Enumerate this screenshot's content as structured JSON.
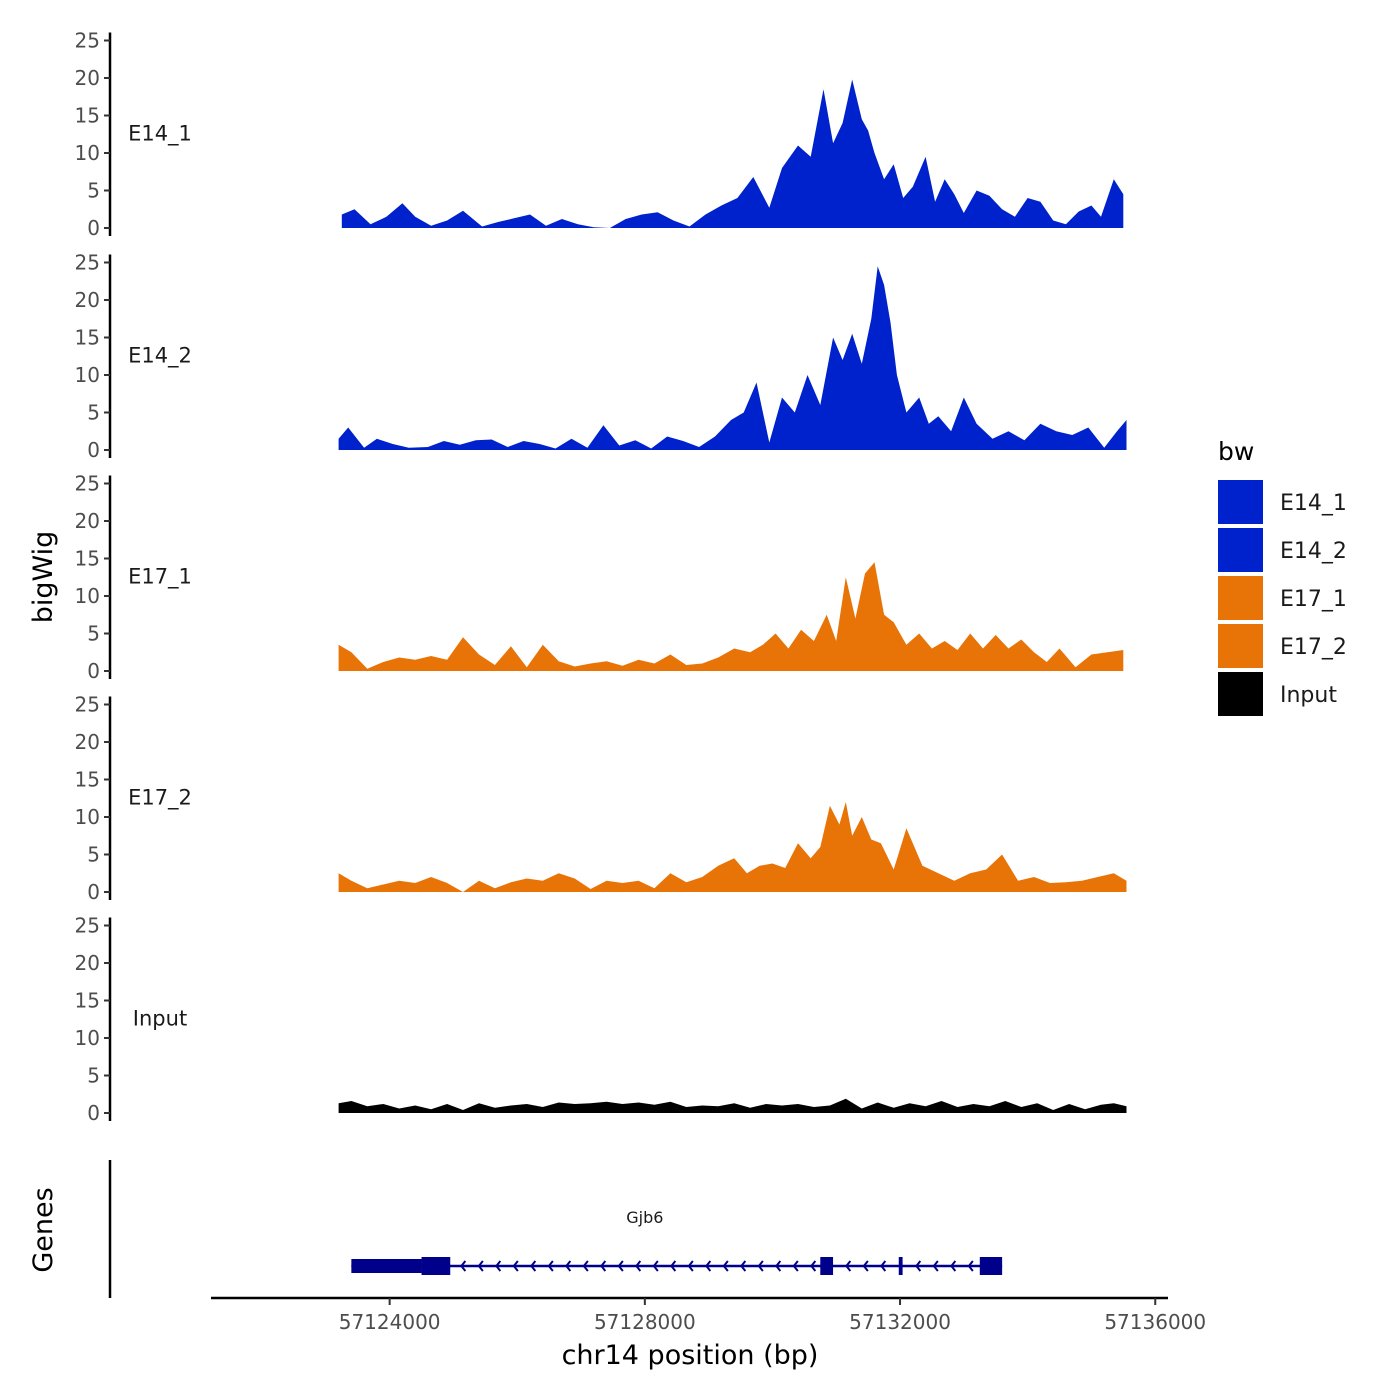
{
  "chart_data": {
    "type": "area",
    "title": "",
    "xlabel": "chr14 position (bp)",
    "ylabel": "bigWig",
    "genes_label": "Genes",
    "xlim": [
      57121200,
      57136200
    ],
    "ylim": [
      0,
      25
    ],
    "x_ticks": [
      57124000,
      57128000,
      57132000,
      57136000
    ],
    "x_tick_labels": [
      "57124000",
      "57128000",
      "57132000",
      "57136000"
    ],
    "y_ticks": [
      0,
      5,
      10,
      15,
      20,
      25
    ],
    "y_tick_labels": [
      "0",
      "5",
      "10",
      "15",
      "20",
      "25"
    ],
    "legend": {
      "title": "bw",
      "position": "right",
      "entries": [
        {
          "label": "E14_1",
          "color": "#0022CC"
        },
        {
          "label": "E14_2",
          "color": "#0022CC"
        },
        {
          "label": "E17_1",
          "color": "#E87408"
        },
        {
          "label": "E17_2",
          "color": "#E87408"
        },
        {
          "label": "Input",
          "color": "#000000"
        }
      ]
    },
    "series": [
      {
        "name": "E14_1",
        "color": "#0022CC",
        "x": [
          57123250,
          57123450,
          57123700,
          57123950,
          57124200,
          57124400,
          57124650,
          57124900,
          57125150,
          57125450,
          57125700,
          57125950,
          57126200,
          57126450,
          57126700,
          57126950,
          57127200,
          57127450,
          57127700,
          57127950,
          57128200,
          57128450,
          57128700,
          57128950,
          57129200,
          57129450,
          57129700,
          57129950,
          57130150,
          57130400,
          57130600,
          57130800,
          57130950,
          57131100,
          57131250,
          57131400,
          57131500,
          57131600,
          57131750,
          57131900,
          57132050,
          57132200,
          57132400,
          57132550,
          57132700,
          57132850,
          57133000,
          57133200,
          57133400,
          57133600,
          57133800,
          57134000,
          57134200,
          57134400,
          57134600,
          57134800,
          57135000,
          57135150,
          57135350,
          57135500
        ],
        "values": [
          1.8,
          2.5,
          0.5,
          1.5,
          3.3,
          1.5,
          0.3,
          1.0,
          2.3,
          0.2,
          0.8,
          1.3,
          1.8,
          0.3,
          1.2,
          0.5,
          0.1,
          0.0,
          1.2,
          1.8,
          2.1,
          1.0,
          0.2,
          1.8,
          3.0,
          4.0,
          6.8,
          2.7,
          8.0,
          11.0,
          9.5,
          18.5,
          11.3,
          14.0,
          19.8,
          14.5,
          13.0,
          10.0,
          6.5,
          8.5,
          4.0,
          5.5,
          9.5,
          3.5,
          6.5,
          4.5,
          2.0,
          5.0,
          4.3,
          2.5,
          1.5,
          4.0,
          3.5,
          1.0,
          0.5,
          2.2,
          3.0,
          1.5,
          6.5,
          4.5
        ]
      },
      {
        "name": "E14_2",
        "color": "#0022CC",
        "x": [
          57123200,
          57123350,
          57123600,
          57123800,
          57124050,
          57124300,
          57124600,
          57124850,
          57125100,
          57125350,
          57125600,
          57125850,
          57126100,
          57126350,
          57126600,
          57126850,
          57127100,
          57127350,
          57127600,
          57127850,
          57128100,
          57128350,
          57128600,
          57128850,
          57129100,
          57129350,
          57129550,
          57129750,
          57129950,
          57130150,
          57130350,
          57130550,
          57130750,
          57130950,
          57131100,
          57131250,
          57131400,
          57131550,
          57131650,
          57131750,
          57131850,
          57131950,
          57132100,
          57132300,
          57132450,
          57132600,
          57132800,
          57133000,
          57133200,
          57133450,
          57133700,
          57133950,
          57134200,
          57134450,
          57134700,
          57134950,
          57135200,
          57135400,
          57135550
        ],
        "values": [
          1.5,
          3.0,
          0.3,
          1.5,
          0.8,
          0.3,
          0.4,
          1.2,
          0.7,
          1.3,
          1.4,
          0.4,
          1.2,
          0.8,
          0.2,
          1.5,
          0.3,
          3.3,
          0.6,
          1.3,
          0.2,
          1.8,
          1.2,
          0.4,
          1.8,
          4.0,
          5.0,
          9.0,
          1.0,
          7.0,
          5.0,
          10.0,
          6.0,
          15.0,
          12.0,
          15.5,
          11.5,
          17.5,
          24.5,
          22.0,
          17.0,
          10.0,
          5.0,
          7.0,
          3.5,
          4.5,
          2.5,
          7.0,
          3.5,
          1.5,
          2.5,
          1.3,
          3.5,
          2.5,
          2.0,
          3.0,
          0.3,
          2.5,
          4.0
        ]
      },
      {
        "name": "E17_1",
        "color": "#E87408",
        "x": [
          57123200,
          57123400,
          57123650,
          57123900,
          57124150,
          57124400,
          57124650,
          57124900,
          57125150,
          57125400,
          57125650,
          57125900,
          57126150,
          57126400,
          57126650,
          57126900,
          57127150,
          57127400,
          57127650,
          57127900,
          57128150,
          57128400,
          57128650,
          57128900,
          57129150,
          57129400,
          57129650,
          57129850,
          57130050,
          57130250,
          57130450,
          57130650,
          57130850,
          57131000,
          57131150,
          57131300,
          57131450,
          57131600,
          57131750,
          57131900,
          57132100,
          57132300,
          57132500,
          57132700,
          57132900,
          57133100,
          57133300,
          57133500,
          57133700,
          57133900,
          57134100,
          57134300,
          57134500,
          57134750,
          57135000,
          57135250,
          57135500
        ],
        "values": [
          3.5,
          2.5,
          0.3,
          1.2,
          1.8,
          1.5,
          2.0,
          1.5,
          4.5,
          2.2,
          0.8,
          3.3,
          0.5,
          3.5,
          1.3,
          0.6,
          1.0,
          1.3,
          0.7,
          1.5,
          1.0,
          2.2,
          0.8,
          1.0,
          1.8,
          3.0,
          2.5,
          3.5,
          5.0,
          3.0,
          5.5,
          4.0,
          7.5,
          4.0,
          12.5,
          7.0,
          13.0,
          14.5,
          7.5,
          6.5,
          3.5,
          5.0,
          3.0,
          4.0,
          2.8,
          5.0,
          3.0,
          4.8,
          3.0,
          4.2,
          2.5,
          1.2,
          3.0,
          0.5,
          2.2,
          2.5,
          2.8
        ]
      },
      {
        "name": "E17_2",
        "color": "#E87408",
        "x": [
          57123200,
          57123400,
          57123650,
          57123900,
          57124150,
          57124400,
          57124650,
          57124900,
          57125150,
          57125400,
          57125650,
          57125900,
          57126150,
          57126400,
          57126650,
          57126900,
          57127150,
          57127400,
          57127650,
          57127900,
          57128150,
          57128400,
          57128650,
          57128900,
          57129150,
          57129400,
          57129600,
          57129800,
          57130000,
          57130200,
          57130400,
          57130600,
          57130750,
          57130900,
          57131050,
          57131150,
          57131250,
          57131400,
          57131550,
          57131700,
          57131900,
          57132100,
          57132350,
          57132600,
          57132850,
          57133100,
          57133350,
          57133600,
          57133850,
          57134100,
          57134350,
          57134600,
          57134850,
          57135100,
          57135350,
          57135550
        ],
        "values": [
          2.5,
          1.5,
          0.5,
          1.0,
          1.5,
          1.2,
          2.0,
          1.2,
          0.0,
          1.5,
          0.5,
          1.3,
          1.8,
          1.5,
          2.5,
          1.8,
          0.4,
          1.5,
          1.2,
          1.5,
          0.5,
          2.5,
          1.3,
          2.0,
          3.5,
          4.5,
          2.5,
          3.5,
          3.8,
          3.2,
          6.5,
          4.5,
          6.0,
          11.5,
          9.0,
          12.0,
          7.5,
          10.0,
          7.0,
          6.5,
          3.0,
          8.5,
          3.5,
          2.5,
          1.5,
          2.5,
          3.0,
          5.0,
          1.5,
          2.0,
          1.2,
          1.3,
          1.5,
          2.0,
          2.5,
          1.5
        ]
      },
      {
        "name": "Input",
        "color": "#000000",
        "x": [
          57123200,
          57123400,
          57123650,
          57123900,
          57124150,
          57124400,
          57124650,
          57124900,
          57125150,
          57125400,
          57125650,
          57125900,
          57126150,
          57126400,
          57126650,
          57126900,
          57127150,
          57127400,
          57127650,
          57127900,
          57128150,
          57128400,
          57128650,
          57128900,
          57129150,
          57129400,
          57129650,
          57129900,
          57130150,
          57130400,
          57130650,
          57130900,
          57131150,
          57131400,
          57131650,
          57131900,
          57132150,
          57132400,
          57132650,
          57132900,
          57133150,
          57133400,
          57133650,
          57133900,
          57134150,
          57134400,
          57134650,
          57134900,
          57135150,
          57135350,
          57135550
        ],
        "values": [
          1.3,
          1.6,
          0.9,
          1.2,
          0.6,
          1.0,
          0.5,
          1.2,
          0.4,
          1.3,
          0.7,
          1.0,
          1.2,
          0.8,
          1.4,
          1.2,
          1.3,
          1.5,
          1.2,
          1.4,
          1.1,
          1.5,
          0.8,
          1.0,
          0.9,
          1.3,
          0.7,
          1.2,
          1.0,
          1.2,
          0.8,
          1.0,
          1.9,
          0.6,
          1.4,
          0.7,
          1.3,
          0.9,
          1.6,
          0.8,
          1.2,
          0.9,
          1.6,
          0.8,
          1.3,
          0.4,
          1.2,
          0.5,
          1.1,
          1.3,
          0.9
        ]
      }
    ],
    "genes": [
      {
        "name": "Gjb6",
        "strand": "-",
        "start": 57123400,
        "end": 57133600,
        "exons": [
          {
            "start": 57123400,
            "end": 57124500,
            "type": "utr"
          },
          {
            "start": 57124500,
            "end": 57124950,
            "type": "cds"
          },
          {
            "start": 57130750,
            "end": 57130950,
            "type": "cds"
          },
          {
            "start": 57131980,
            "end": 57132040,
            "type": "cds"
          },
          {
            "start": 57133250,
            "end": 57133600,
            "type": "cds"
          }
        ]
      }
    ]
  }
}
